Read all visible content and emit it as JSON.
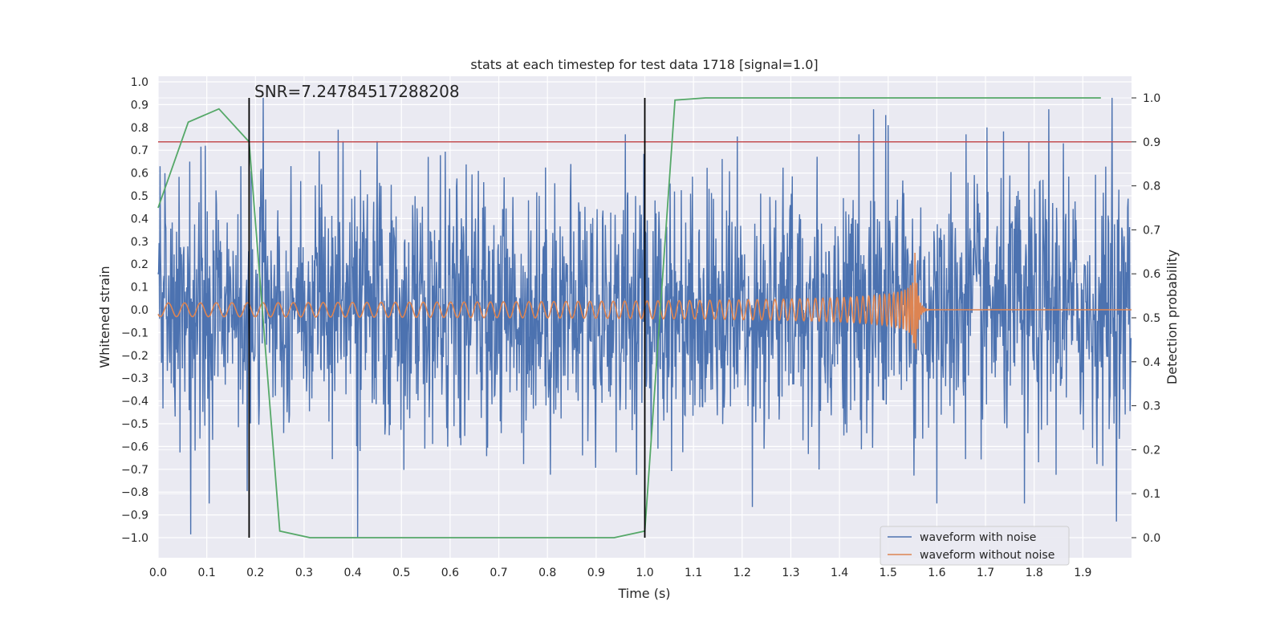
{
  "chart_data": {
    "type": "line",
    "title": "stats at each timestep for test data 1718 [signal=1.0]",
    "xlabel": "Time (s)",
    "ylabel": "Whitened strain",
    "y2label": "Detection probability",
    "xlim": [
      0.0,
      2.0
    ],
    "ylim": [
      -1.1,
      1.04
    ],
    "y2lim": [
      -0.05,
      1.05
    ],
    "grid": true,
    "legend_position": "bottom-right",
    "x_ticks": [
      "0.0",
      "0.1",
      "0.2",
      "0.3",
      "0.4",
      "0.5",
      "0.6",
      "0.7",
      "0.8",
      "0.9",
      "1.0",
      "1.1",
      "1.2",
      "1.3",
      "1.4",
      "1.5",
      "1.6",
      "1.7",
      "1.8",
      "1.9"
    ],
    "y_ticks": [
      "1.0",
      "0.9",
      "0.8",
      "0.7",
      "0.6",
      "0.5",
      "0.4",
      "0.3",
      "0.2",
      "0.1",
      "0.0",
      "−0.1",
      "−0.2",
      "−0.3",
      "−0.4",
      "−0.5",
      "−0.6",
      "−0.7",
      "−0.8",
      "−0.9",
      "−1.0"
    ],
    "y2_ticks": [
      "1.0",
      "0.9",
      "0.8",
      "0.7",
      "0.6",
      "0.5",
      "0.4",
      "0.3",
      "0.2",
      "0.1",
      "0.0"
    ],
    "annotation": "SNR=7.24784517288208",
    "series": [
      {
        "name": "waveform with noise",
        "color": "#4c72b0",
        "axis": "left",
        "description_values": {
          "x_range": [
            0.0,
            2.0
          ],
          "samples": 2000,
          "peaks": [
            [
              0.004,
              0.63
            ],
            [
              0.015,
              0.38
            ],
            [
              0.065,
              0.65
            ],
            [
              0.105,
              -0.85
            ],
            [
              0.17,
              0.63
            ],
            [
              0.37,
              0.79
            ],
            [
              0.38,
              0.74
            ],
            [
              0.41,
              -1.0
            ],
            [
              0.45,
              0.74
            ],
            [
              0.96,
              0.77
            ],
            [
              1.19,
              0.76
            ],
            [
              1.44,
              0.77
            ],
            [
              1.47,
              0.88
            ],
            [
              1.5,
              0.81
            ],
            [
              1.6,
              0.93
            ],
            [
              1.66,
              0.77
            ],
            [
              1.83,
              0.88
            ],
            [
              1.86,
              0.73
            ],
            [
              1.96,
              0.93
            ],
            [
              1.78,
              -0.85
            ],
            [
              1.6,
              -0.85
            ]
          ]
        }
      },
      {
        "name": "waveform without noise",
        "color": "#dd8452",
        "axis": "left",
        "description_values": {
          "type": "chirp",
          "merger_time": 1.555,
          "start_amplitude": 0.03,
          "peak_amplitude": 0.25,
          "start_frequency_hz": 30
        }
      },
      {
        "name": "",
        "color": "#55a868",
        "axis": "right",
        "x": [
          0.0,
          0.062,
          0.125,
          0.187,
          0.25,
          0.312,
          0.375,
          0.437,
          0.5,
          0.562,
          0.625,
          0.687,
          0.75,
          0.812,
          0.875,
          0.937,
          1.0,
          1.062,
          1.125,
          1.187,
          1.25,
          1.312,
          1.375,
          1.437,
          1.5,
          1.562,
          1.625,
          1.687,
          1.75,
          1.812,
          1.875,
          1.937
        ],
        "values": [
          0.75,
          0.945,
          0.975,
          0.9,
          0.015,
          0.0,
          0.0,
          0.0,
          0.0,
          0.0,
          0.0,
          0.0,
          0.0,
          0.0,
          0.0,
          0.0,
          0.015,
          0.995,
          1.0,
          1.0,
          1.0,
          1.0,
          1.0,
          1.0,
          1.0,
          1.0,
          1.0,
          1.0,
          1.0,
          1.0,
          1.0,
          1.0
        ]
      }
    ],
    "threshold_line": {
      "axis": "right",
      "value": 0.9,
      "color": "#c44e52"
    },
    "vertical_markers": [
      {
        "x": 0.187,
        "y2_range": [
          0.0,
          1.0
        ],
        "color": "#000000"
      },
      {
        "x": 1.0,
        "y2_range": [
          0.0,
          1.0
        ],
        "color": "#000000"
      }
    ]
  }
}
